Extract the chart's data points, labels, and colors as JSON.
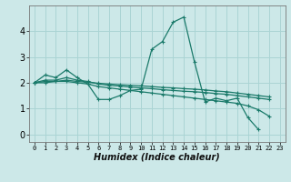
{
  "xlabel": "Humidex (Indice chaleur)",
  "bg_color": "#cce8e8",
  "grid_color": "#aad4d4",
  "line_color": "#1a7a6a",
  "xlim": [
    -0.5,
    23.5
  ],
  "ylim": [
    -0.3,
    5.0
  ],
  "x_ticks": [
    0,
    1,
    2,
    3,
    4,
    5,
    6,
    7,
    8,
    9,
    10,
    11,
    12,
    13,
    14,
    15,
    16,
    17,
    18,
    19,
    20,
    21,
    22,
    23
  ],
  "y_ticks": [
    0,
    1,
    2,
    3,
    4
  ],
  "lines": [
    {
      "x": [
        0,
        1,
        2,
        3,
        4,
        5,
        6,
        7,
        8,
        9,
        10,
        11,
        12,
        13,
        14,
        15,
        16,
        17,
        18,
        19,
        20,
        21,
        22,
        23
      ],
      "y": [
        2.0,
        2.3,
        2.2,
        2.5,
        2.2,
        1.95,
        1.35,
        1.35,
        1.5,
        1.7,
        1.75,
        3.3,
        3.6,
        4.35,
        4.55,
        2.8,
        1.25,
        1.4,
        1.3,
        1.4,
        0.65,
        0.18,
        null,
        null
      ]
    },
    {
      "x": [
        0,
        1,
        2,
        3,
        4,
        5,
        6,
        7,
        8,
        9,
        10,
        11,
        12,
        13,
        14,
        15,
        16,
        17,
        18,
        19,
        20,
        21,
        22,
        23
      ],
      "y": [
        2.0,
        2.0,
        2.05,
        2.05,
        2.0,
        1.95,
        1.85,
        1.8,
        1.75,
        1.7,
        1.65,
        1.6,
        1.55,
        1.5,
        1.45,
        1.4,
        1.35,
        1.3,
        1.25,
        1.2,
        1.1,
        0.95,
        0.7,
        null
      ]
    },
    {
      "x": [
        0,
        1,
        2,
        3,
        4,
        5,
        6,
        7,
        8,
        9,
        10,
        11,
        12,
        13,
        14,
        15,
        16,
        17,
        18,
        19,
        20,
        21,
        22,
        23
      ],
      "y": [
        2.0,
        2.1,
        2.1,
        2.2,
        2.1,
        2.05,
        1.95,
        1.9,
        1.87,
        1.83,
        1.8,
        1.77,
        1.73,
        1.7,
        1.67,
        1.65,
        1.62,
        1.58,
        1.55,
        1.5,
        1.45,
        1.4,
        1.35,
        null
      ]
    },
    {
      "x": [
        0,
        1,
        2,
        3,
        4,
        5,
        6,
        7,
        8,
        9,
        10,
        11,
        12,
        13,
        14,
        15,
        16,
        17,
        18,
        19,
        20,
        21,
        22,
        23
      ],
      "y": [
        2.0,
        2.05,
        2.05,
        2.1,
        2.05,
        2.02,
        1.98,
        1.95,
        1.92,
        1.9,
        1.88,
        1.85,
        1.82,
        1.8,
        1.77,
        1.75,
        1.72,
        1.68,
        1.65,
        1.6,
        1.55,
        1.5,
        1.45,
        null
      ]
    }
  ],
  "xlabel_fontsize": 7,
  "xtick_fontsize": 5,
  "ytick_fontsize": 7,
  "linewidth": 0.9,
  "markersize": 3
}
